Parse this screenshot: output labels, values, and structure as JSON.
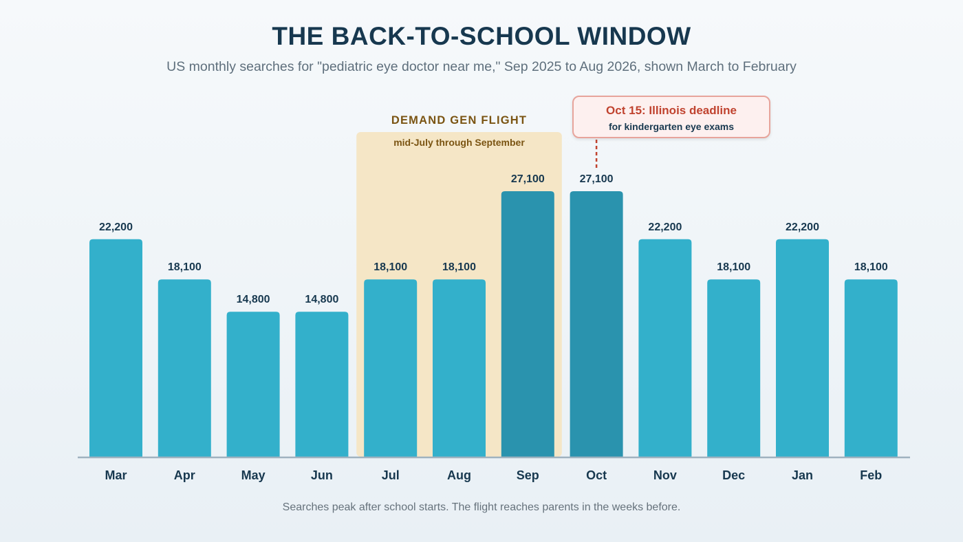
{
  "header": {
    "title": "THE BACK-TO-SCHOOL WINDOW",
    "subtitle": "US monthly searches for \"pediatric eye doctor near me,\" Sep 2025 to Aug 2026, shown March to February"
  },
  "flight": {
    "title": "DEMAND GEN FLIGHT",
    "subtitle": "mid-July through September",
    "from_month": "Jul",
    "to_month": "Sep"
  },
  "callout": {
    "title": "Oct 15: Illinois deadline",
    "subtitle": "for kindergarten eye exams",
    "month": "Oct"
  },
  "footnote": "Searches peak after school starts. The flight reaches parents in the weeks before.",
  "colors": {
    "bar": "#33b0cb",
    "bar_peak": "#2a93ae",
    "flight_band": "#f5e6c6",
    "axis": "#9fb2bf",
    "callout_accent": "#c0432f"
  },
  "chart_data": {
    "type": "bar",
    "title": "THE BACK-TO-SCHOOL WINDOW",
    "subtitle": "US monthly searches for \"pediatric eye doctor near me,\" Sep 2025 to Aug 2026, shown March to February",
    "categories": [
      "Mar",
      "Apr",
      "May",
      "Jun",
      "Jul",
      "Aug",
      "Sep",
      "Oct",
      "Nov",
      "Dec",
      "Jan",
      "Feb"
    ],
    "values": [
      22200,
      18100,
      14800,
      14800,
      18100,
      18100,
      27100,
      27100,
      22200,
      18100,
      22200,
      18100
    ],
    "value_labels": [
      "22,200",
      "18,100",
      "14,800",
      "14,800",
      "18,100",
      "18,100",
      "27,100",
      "27,100",
      "22,200",
      "18,100",
      "22,200",
      "18,100"
    ],
    "highlighted": [
      "Sep",
      "Oct"
    ],
    "xlabel": "",
    "ylabel": "",
    "ylim": [
      0,
      27100
    ],
    "grid": false,
    "legend": "none"
  }
}
